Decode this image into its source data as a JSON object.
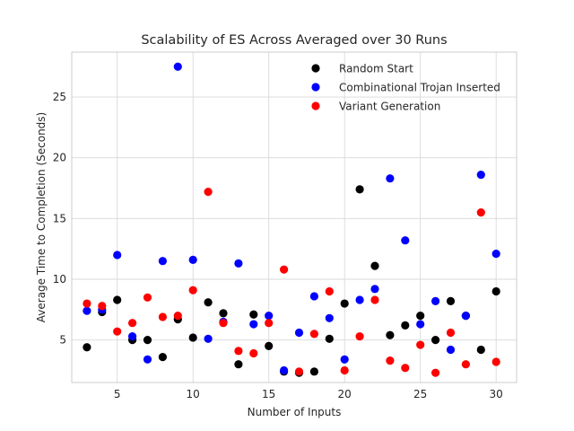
{
  "chart_data": {
    "type": "scatter",
    "title": "Scalability of ES Across Averaged over 30 Runs",
    "xlabel": "Number of Inputs",
    "ylabel": "Average Time to Completion (Seconds)",
    "xlim": [
      2.0,
      31.35
    ],
    "ylim": [
      1.5,
      28.7
    ],
    "xticks": [
      5,
      10,
      15,
      20,
      25,
      30
    ],
    "yticks": [
      5,
      10,
      15,
      20,
      25
    ],
    "grid": true,
    "legend_position": "top-right",
    "series": [
      {
        "name": "Random Start",
        "color": "#000000",
        "points": [
          [
            3,
            4.4
          ],
          [
            4,
            7.3
          ],
          [
            5,
            8.3
          ],
          [
            6,
            5.0
          ],
          [
            7,
            5.0
          ],
          [
            8,
            3.6
          ],
          [
            9,
            6.7
          ],
          [
            10,
            5.2
          ],
          [
            11,
            8.1
          ],
          [
            12,
            7.2
          ],
          [
            13,
            3.0
          ],
          [
            14,
            7.1
          ],
          [
            15,
            4.5
          ],
          [
            16,
            2.4
          ],
          [
            17,
            2.3
          ],
          [
            18,
            2.4
          ],
          [
            19,
            5.1
          ],
          [
            20,
            8.0
          ],
          [
            21,
            17.4
          ],
          [
            22,
            11.1
          ],
          [
            23,
            5.4
          ],
          [
            24,
            6.2
          ],
          [
            25,
            7.0
          ],
          [
            26,
            5.0
          ],
          [
            27,
            8.2
          ],
          [
            28,
            7.0
          ],
          [
            29,
            4.2
          ],
          [
            30,
            9.0
          ]
        ]
      },
      {
        "name": "Combinational Trojan Inserted",
        "color": "#0000ff",
        "points": [
          [
            3,
            7.4
          ],
          [
            4,
            7.5
          ],
          [
            5,
            12.0
          ],
          [
            6,
            5.3
          ],
          [
            7,
            3.4
          ],
          [
            8,
            11.5
          ],
          [
            9,
            27.5
          ],
          [
            10,
            11.6
          ],
          [
            11,
            5.1
          ],
          [
            12,
            6.5
          ],
          [
            13,
            11.3
          ],
          [
            14,
            6.3
          ],
          [
            15,
            7.0
          ],
          [
            16,
            2.5
          ],
          [
            17,
            5.6
          ],
          [
            18,
            8.6
          ],
          [
            19,
            6.8
          ],
          [
            20,
            3.4
          ],
          [
            21,
            8.3
          ],
          [
            22,
            9.2
          ],
          [
            23,
            18.3
          ],
          [
            24,
            13.2
          ],
          [
            25,
            6.3
          ],
          [
            26,
            8.2
          ],
          [
            27,
            4.2
          ],
          [
            28,
            7.0
          ],
          [
            29,
            18.6
          ],
          [
            30,
            12.1
          ]
        ]
      },
      {
        "name": "Variant Generation",
        "color": "#ff0000",
        "points": [
          [
            3,
            8.0
          ],
          [
            4,
            7.8
          ],
          [
            5,
            5.7
          ],
          [
            6,
            6.4
          ],
          [
            7,
            8.5
          ],
          [
            8,
            6.9
          ],
          [
            9,
            7.0
          ],
          [
            10,
            9.1
          ],
          [
            11,
            17.2
          ],
          [
            12,
            6.4
          ],
          [
            13,
            4.1
          ],
          [
            14,
            3.9
          ],
          [
            15,
            6.4
          ],
          [
            16,
            10.8
          ],
          [
            17,
            2.4
          ],
          [
            18,
            5.5
          ],
          [
            19,
            9.0
          ],
          [
            20,
            2.5
          ],
          [
            21,
            5.3
          ],
          [
            22,
            8.3
          ],
          [
            23,
            3.3
          ],
          [
            24,
            2.7
          ],
          [
            25,
            4.6
          ],
          [
            26,
            2.3
          ],
          [
            27,
            5.6
          ],
          [
            28,
            3.0
          ],
          [
            29,
            15.5
          ],
          [
            30,
            3.2
          ]
        ]
      }
    ]
  }
}
